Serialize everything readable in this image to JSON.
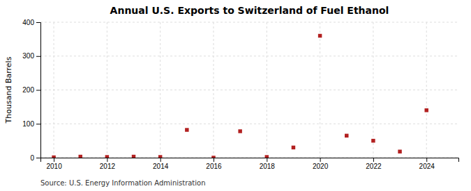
{
  "chart_data": {
    "type": "scatter",
    "title": "Annual U.S. Exports to Switzerland of Fuel Ethanol",
    "ylabel": "Thousand Barrels",
    "source": "Source: U.S. Energy Information Administration",
    "x": [
      2010,
      2011,
      2012,
      2013,
      2014,
      2015,
      2016,
      2017,
      2018,
      2019,
      2020,
      2021,
      2022,
      2023,
      2024
    ],
    "values": [
      1,
      3,
      2,
      3,
      2,
      82,
      0,
      78,
      2,
      30,
      360,
      65,
      50,
      18,
      140
    ],
    "color": "#b22020",
    "marker": "square",
    "xlim": [
      2009.5,
      2025.2
    ],
    "ylim": [
      0,
      400
    ],
    "xticks": [
      2010,
      2012,
      2014,
      2016,
      2018,
      2020,
      2022,
      2024
    ],
    "yticks": [
      0,
      100,
      200,
      300,
      400
    ],
    "grid": true
  }
}
